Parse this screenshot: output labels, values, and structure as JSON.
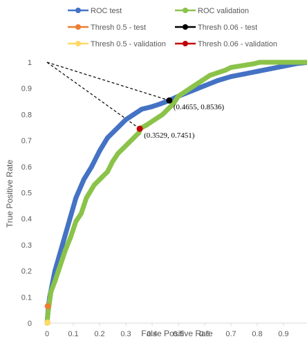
{
  "chart_data": {
    "type": "line",
    "xlabel": "False Positive Rate",
    "ylabel": "True Positive Rate",
    "xlim": [
      0,
      1
    ],
    "ylim": [
      0,
      1
    ],
    "x_ticks": [
      "0",
      "0.1",
      "0.2",
      "0.3",
      "0.4",
      "0.5",
      "0.6",
      "0.7",
      "0.8",
      "0.9"
    ],
    "y_ticks": [
      "0",
      "0.1",
      "0.2",
      "0.3",
      "0.4",
      "0.5",
      "0.6",
      "0.7",
      "0.8",
      "0.9",
      "1"
    ],
    "grid": false,
    "legend_position": "top",
    "series": [
      {
        "name": "ROC test",
        "color": "#4472C4",
        "x": [
          0,
          0.005,
          0.01,
          0.02,
          0.03,
          0.05,
          0.07,
          0.09,
          0.11,
          0.14,
          0.17,
          0.2,
          0.23,
          0.27,
          0.3,
          0.33,
          0.36,
          0.4,
          0.43,
          0.4655,
          0.5,
          0.55,
          0.6,
          0.65,
          0.7,
          0.75,
          0.8,
          0.85,
          0.9,
          0.95,
          1.0
        ],
        "y": [
          0,
          0.06,
          0.1,
          0.15,
          0.2,
          0.27,
          0.34,
          0.41,
          0.48,
          0.55,
          0.6,
          0.66,
          0.71,
          0.75,
          0.78,
          0.8,
          0.82,
          0.83,
          0.84,
          0.8536,
          0.87,
          0.89,
          0.91,
          0.93,
          0.945,
          0.955,
          0.965,
          0.975,
          0.985,
          0.995,
          1.0
        ]
      },
      {
        "name": "ROC validation",
        "color": "#8BC34A",
        "x": [
          0,
          0.003,
          0.008,
          0.015,
          0.03,
          0.05,
          0.07,
          0.09,
          0.11,
          0.13,
          0.15,
          0.18,
          0.2,
          0.23,
          0.25,
          0.27,
          0.29,
          0.31,
          0.33,
          0.35,
          0.3529,
          0.38,
          0.41,
          0.44,
          0.46,
          0.48,
          0.5,
          0.53,
          0.56,
          0.59,
          0.62,
          0.65,
          0.68,
          0.7,
          0.73,
          0.76,
          0.79,
          0.81,
          0.85,
          0.9,
          0.95,
          1.0
        ],
        "y": [
          0,
          0.03,
          0.07,
          0.12,
          0.16,
          0.22,
          0.28,
          0.33,
          0.39,
          0.42,
          0.48,
          0.53,
          0.55,
          0.58,
          0.62,
          0.65,
          0.67,
          0.69,
          0.71,
          0.73,
          0.7451,
          0.76,
          0.78,
          0.8,
          0.82,
          0.84,
          0.87,
          0.89,
          0.91,
          0.93,
          0.95,
          0.96,
          0.97,
          0.98,
          0.985,
          0.99,
          0.995,
          1.0,
          1.0,
          1.0,
          1.0,
          1.0
        ]
      },
      {
        "name": "Thresh 0.5 - test",
        "color": "#ED7D31",
        "x": [
          0.003
        ],
        "y": [
          0.065
        ]
      },
      {
        "name": "Thresh 0.06 - test",
        "color": "#000000",
        "x": [
          0.4655
        ],
        "y": [
          0.8536
        ]
      },
      {
        "name": "Thresh 0.5 - validation",
        "color": "#FFD966",
        "x": [
          0.002
        ],
        "y": [
          0.002
        ]
      },
      {
        "name": "Thresh 0.06 - validation",
        "color": "#C00000",
        "x": [
          0.3529
        ],
        "y": [
          0.7451
        ]
      }
    ],
    "annotations": [
      {
        "text": "(0.4655, 0.8536)",
        "x": 0.4655,
        "y": 0.8536
      },
      {
        "text": "(0.3529, 0.7451)",
        "x": 0.3529,
        "y": 0.7451
      }
    ],
    "dashed_lines": [
      {
        "x": [
          0,
          0.4655
        ],
        "y": [
          1,
          0.8536
        ],
        "color": "#000000"
      },
      {
        "x": [
          0,
          0.3529
        ],
        "y": [
          1,
          0.7451
        ],
        "color": "#000000"
      }
    ]
  }
}
